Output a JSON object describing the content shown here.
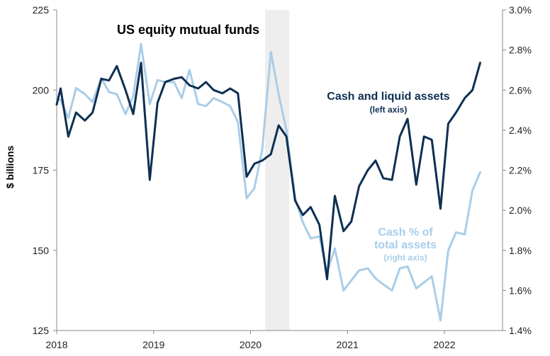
{
  "chart_data": {
    "type": "line",
    "title": "US equity mutual funds",
    "ylabel_left": "$ billions",
    "ylabel_right": "",
    "xlabel": "",
    "x_ticks": [
      "2018",
      "2019",
      "2020",
      "2021",
      "2022"
    ],
    "x_range": [
      2018.0,
      2022.6
    ],
    "y_left_ticks": [
      "125",
      "150",
      "175",
      "200",
      "225"
    ],
    "y_left_range": [
      125,
      225
    ],
    "y_right_ticks": [
      "1.4%",
      "1.6%",
      "1.8%",
      "2.0%",
      "2.2%",
      "2.4%",
      "2.6%",
      "2.8%",
      "3.0%"
    ],
    "y_right_range": [
      1.4,
      3.0
    ],
    "recession_shading": {
      "start": 2020.15,
      "end": 2020.4,
      "color": "#eeeeee"
    },
    "grid": false,
    "series": [
      {
        "name": "Cash and liquid assets",
        "note": "(left axis)",
        "axis": "left",
        "color": "#0d2f52",
        "x": [
          2018.0,
          2018.04,
          2018.12,
          2018.2,
          2018.29,
          2018.37,
          2018.46,
          2018.54,
          2018.62,
          2018.71,
          2018.79,
          2018.87,
          2018.96,
          2019.04,
          2019.12,
          2019.21,
          2019.29,
          2019.37,
          2019.46,
          2019.54,
          2019.62,
          2019.71,
          2019.79,
          2019.87,
          2019.96,
          2020.04,
          2020.12,
          2020.21,
          2020.29,
          2020.37,
          2020.46,
          2020.54,
          2020.62,
          2020.71,
          2020.79,
          2020.87,
          2020.96,
          2021.04,
          2021.12,
          2021.21,
          2021.29,
          2021.37,
          2021.46,
          2021.54,
          2021.62,
          2021.71,
          2021.79,
          2021.87,
          2021.96,
          2022.04,
          2022.12,
          2022.21,
          2022.29,
          2022.37
        ],
        "y": [
          195.5,
          200.5,
          185.5,
          193.0,
          190.5,
          193.0,
          203.5,
          203.0,
          207.5,
          200.0,
          192.5,
          208.5,
          172.0,
          196.0,
          202.5,
          203.5,
          204.0,
          201.5,
          200.5,
          202.5,
          200.0,
          199.0,
          200.5,
          199.0,
          173.0,
          177.0,
          178.0,
          180.0,
          189.0,
          185.5,
          165.5,
          161.0,
          163.5,
          158.0,
          141.0,
          167.0,
          156.0,
          159.0,
          170.0,
          175.0,
          178.0,
          172.5,
          172.0,
          185.5,
          191.0,
          170.5,
          185.5,
          184.5,
          163.0,
          189.5,
          193.0,
          197.5,
          200.0,
          208.5
        ]
      },
      {
        "name": "Cash % of total assets",
        "note": "(right axis)",
        "axis": "right",
        "color": "#a9cde8",
        "x": [
          2018.0,
          2018.04,
          2018.12,
          2018.2,
          2018.29,
          2018.37,
          2018.46,
          2018.54,
          2018.62,
          2018.71,
          2018.79,
          2018.87,
          2018.96,
          2019.04,
          2019.12,
          2019.21,
          2019.29,
          2019.37,
          2019.46,
          2019.54,
          2019.62,
          2019.71,
          2019.79,
          2019.87,
          2019.96,
          2020.04,
          2020.12,
          2020.21,
          2020.29,
          2020.37,
          2020.46,
          2020.54,
          2020.62,
          2020.71,
          2020.79,
          2020.87,
          2020.96,
          2021.04,
          2021.12,
          2021.21,
          2021.29,
          2021.37,
          2021.46,
          2021.54,
          2021.62,
          2021.71,
          2021.79,
          2021.87,
          2021.96,
          2022.04,
          2022.12,
          2022.21,
          2022.29,
          2022.37
        ],
        "y": [
          2.56,
          2.55,
          2.46,
          2.61,
          2.58,
          2.54,
          2.66,
          2.59,
          2.58,
          2.48,
          2.57,
          2.83,
          2.53,
          2.65,
          2.64,
          2.64,
          2.56,
          2.7,
          2.53,
          2.52,
          2.56,
          2.54,
          2.52,
          2.44,
          2.06,
          2.11,
          2.3,
          2.79,
          2.58,
          2.4,
          2.06,
          1.94,
          1.86,
          1.87,
          1.69,
          1.81,
          1.6,
          1.65,
          1.7,
          1.71,
          1.66,
          1.63,
          1.6,
          1.71,
          1.72,
          1.61,
          1.64,
          1.67,
          1.45,
          1.8,
          1.89,
          1.88,
          2.1,
          2.19
        ]
      }
    ]
  }
}
